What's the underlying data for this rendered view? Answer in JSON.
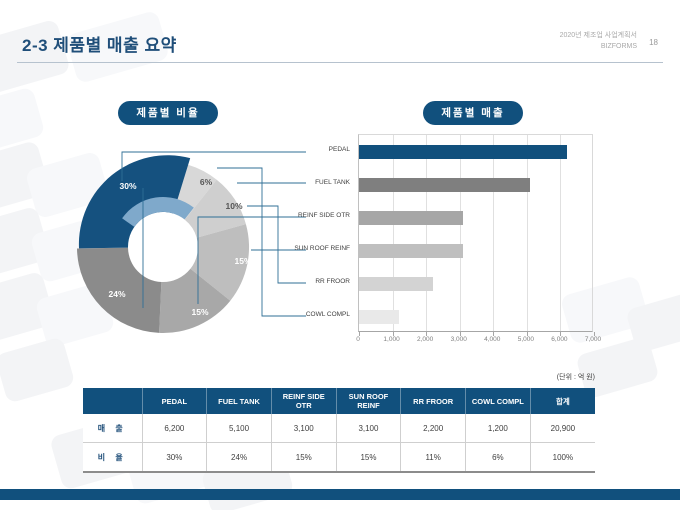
{
  "slide": {
    "title": "2-3 제품별 매출 요약",
    "meta": {
      "line1": "2020년 제조업 사업계획서",
      "line2": "BIZFORMS",
      "page": "18"
    },
    "unit_note": "(단위 : 억 원)"
  },
  "colors": {
    "accent": "#11507D",
    "title_text": "#1F4E79",
    "leader_line": "#2F6F96",
    "light_blue_arc": "#7FA9CB"
  },
  "donut": {
    "title": "제품별 비율",
    "accent_arc_color": "#7FA9CB",
    "slices": [
      {
        "product": "COWL COMPL",
        "label": "6%",
        "color": "#D8D8D8"
      },
      {
        "product": "RR FROOR",
        "label": "10%",
        "color": "#CFCFCF"
      },
      {
        "product": "SUN ROOF REINF",
        "label": "15%",
        "color": "#BEBEBE"
      },
      {
        "product": "REINF SIDE OTR",
        "label": "15%",
        "color": "#A8A8A8"
      },
      {
        "product": "FUEL TANK",
        "label": "24%",
        "color": "#8B8B8B"
      },
      {
        "product": "PEDAL",
        "label": "30%",
        "color": "#15517F"
      }
    ]
  },
  "bar_chart": {
    "title": "제품별 매출"
  },
  "chart_data": [
    {
      "type": "pie",
      "subtype": "donut",
      "title": "제품별 비율",
      "categories": [
        "PEDAL",
        "FUEL TANK",
        "SUN ROOF REINF",
        "REINF SIDE OTR",
        "RR FROOR",
        "COWL COMPL"
      ],
      "values": [
        30,
        24,
        15,
        15,
        10,
        6
      ],
      "unit": "%",
      "legend": "none",
      "note": "labels shown on slices; leader lines connect slices to bar-chart category labels"
    },
    {
      "type": "bar",
      "orientation": "horizontal",
      "title": "제품별 매출",
      "categories": [
        "PEDAL",
        "FUEL TANK",
        "REINF SIDE OTR",
        "SUN ROOF REINF",
        "RR FROOR",
        "COWL COMPL"
      ],
      "values": [
        6200,
        5100,
        3100,
        3100,
        2200,
        1200
      ],
      "colors": [
        "#11507D",
        "#7F7F7F",
        "#A6A6A6",
        "#BFBFBF",
        "#D3D3D3",
        "#E9E9E9"
      ],
      "xlim": [
        0,
        7000
      ],
      "xticklabels": [
        "0",
        "1,000",
        "2,000",
        "3,000",
        "4,000",
        "5,000",
        "6,000",
        "7,000"
      ],
      "xlabel": "",
      "ylabel": "",
      "grid": true,
      "unit": "억 원"
    }
  ],
  "table": {
    "headers": [
      "",
      "PEDAL",
      "FUEL TANK",
      "REINF SIDE OTR",
      "SUN ROOF REINF",
      "RR FROOR",
      "COWL COMPL",
      "합계"
    ],
    "rows": [
      {
        "label": "매 출",
        "values": [
          "6,200",
          "5,100",
          "3,100",
          "3,100",
          "2,200",
          "1,200",
          "20,900"
        ]
      },
      {
        "label": "비 율",
        "values": [
          "30%",
          "24%",
          "15%",
          "15%",
          "11%",
          "6%",
          "100%"
        ]
      }
    ]
  }
}
